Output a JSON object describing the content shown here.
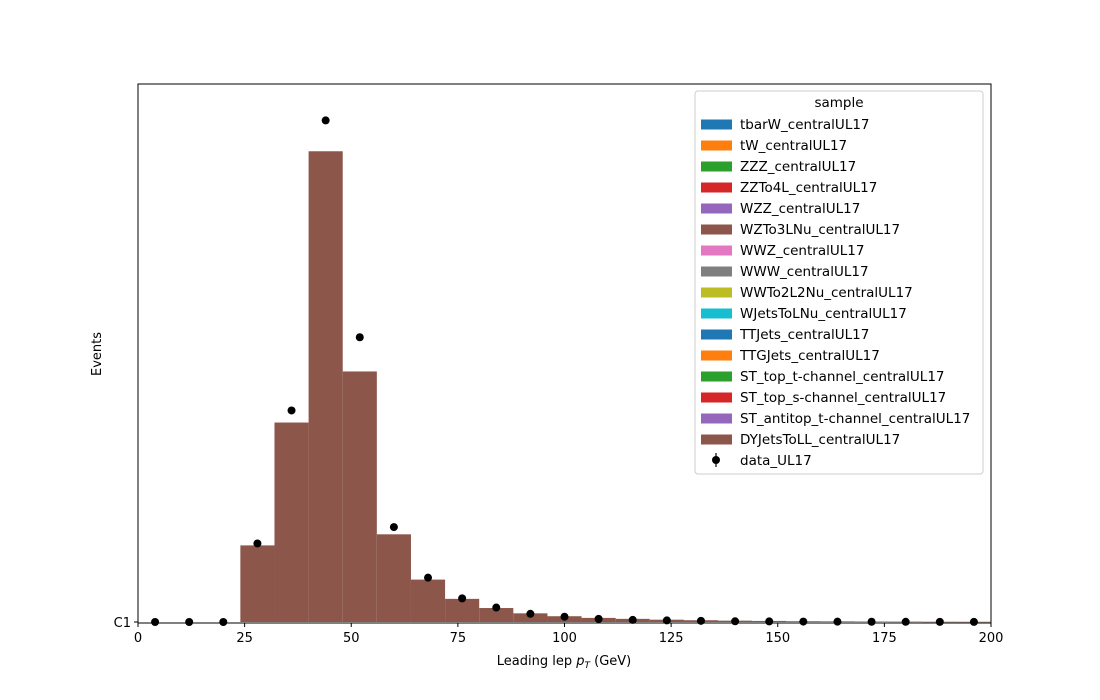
{
  "chart_data": {
    "type": "bar",
    "title": "",
    "xlabel_main": "Leading lep ",
    "xlabel_math": "p",
    "xlabel_sub": "T",
    "xlabel_unit": " (GeV)",
    "ylabel": "Events",
    "xlim": [
      0,
      200
    ],
    "ylim": [
      0,
      1.1
    ],
    "x_ticks": [
      "0",
      "25",
      "50",
      "75",
      "100",
      "125",
      "150",
      "175",
      "200"
    ],
    "y_ticks": [
      "C1"
    ],
    "grid": false,
    "legend_position": "top-right",
    "legend_title": "sample",
    "legend_entries": [
      {
        "name": "tbarW_centralUL17",
        "color": "#1f77b4"
      },
      {
        "name": "tW_centralUL17",
        "color": "#ff7f0e"
      },
      {
        "name": "ZZZ_centralUL17",
        "color": "#2ca02c"
      },
      {
        "name": "ZZTo4L_centralUL17",
        "color": "#d62728"
      },
      {
        "name": "WZZ_centralUL17",
        "color": "#9467bd"
      },
      {
        "name": "WZTo3LNu_centralUL17",
        "color": "#8c564b"
      },
      {
        "name": "WWZ_centralUL17",
        "color": "#e377c2"
      },
      {
        "name": "WWW_centralUL17",
        "color": "#7f7f7f"
      },
      {
        "name": "WWTo2L2Nu_centralUL17",
        "color": "#bcbd22"
      },
      {
        "name": "WJetsToLNu_centralUL17",
        "color": "#17becf"
      },
      {
        "name": "TTJets_centralUL17",
        "color": "#1f77b4"
      },
      {
        "name": "TTGJets_centralUL17",
        "color": "#ff7f0e"
      },
      {
        "name": "ST_top_t-channel_centralUL17",
        "color": "#2ca02c"
      },
      {
        "name": "ST_top_s-channel_centralUL17",
        "color": "#d62728"
      },
      {
        "name": "ST_antitop_t-channel_centralUL17",
        "color": "#9467bd"
      },
      {
        "name": "DYJetsToLL_centralUL17",
        "color": "#8c564b"
      }
    ],
    "data_series_name": "data_UL17",
    "stack_color": "#8c564b",
    "bin_edges": [
      0,
      8,
      16,
      24,
      32,
      40,
      48,
      56,
      64,
      72,
      80,
      88,
      96,
      104,
      112,
      120,
      128,
      136,
      144,
      152,
      160,
      168,
      176,
      184,
      192,
      200
    ],
    "mc_values": [
      0,
      0,
      0,
      0.159,
      0.414,
      0.977,
      0.52,
      0.182,
      0.088,
      0.048,
      0.029,
      0.018,
      0.012,
      0.0085,
      0.0065,
      0.0048,
      0.0037,
      0.0028,
      0.0022,
      0.0016,
      0.0013,
      0.001,
      0.0008,
      0.0006,
      0.0005
    ],
    "data_x": [
      4,
      12,
      20,
      28,
      36,
      44,
      52,
      60,
      68,
      76,
      84,
      92,
      100,
      108,
      116,
      124,
      132,
      140,
      148,
      156,
      164,
      172,
      180,
      188,
      196
    ],
    "data_y": [
      0,
      0,
      0,
      0.163,
      0.439,
      1.041,
      0.591,
      0.197,
      0.092,
      0.049,
      0.03,
      0.017,
      0.011,
      0.0065,
      0.0043,
      0.0033,
      0.0024,
      0.0015,
      0.0012,
      0.0009,
      0.0007,
      0.0005,
      0.0004,
      0.0003,
      0.0002
    ]
  }
}
